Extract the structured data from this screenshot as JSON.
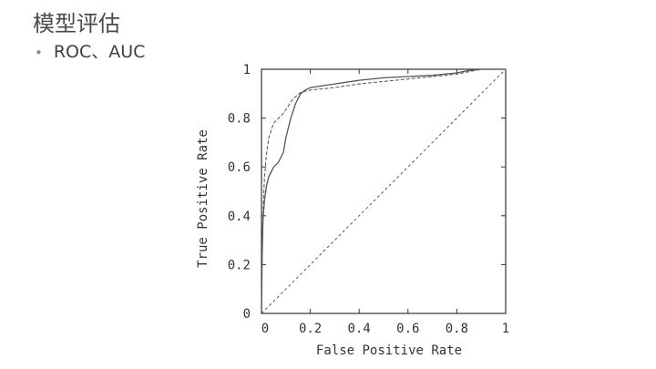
{
  "slide": {
    "title": "模型评估",
    "bullet": "ROC、AUC"
  },
  "chart_data": {
    "type": "line",
    "title": "",
    "xlabel": "False Positive Rate",
    "ylabel": "True Positive Rate",
    "xlim": [
      0,
      1
    ],
    "ylim": [
      0,
      1
    ],
    "x_tick_labels": [
      "0",
      "0.2",
      "0.4",
      "0.6",
      "0.8",
      "1"
    ],
    "y_tick_labels": [
      "0",
      "0.2",
      "0.4",
      "0.6",
      "0.8",
      "1"
    ],
    "grid": false,
    "legend": "none",
    "colors": {
      "line": "#555555",
      "frame": "#333333"
    },
    "series": [
      {
        "style": "solid",
        "points": [
          [
            0,
            0
          ],
          [
            0.003,
            0.25
          ],
          [
            0.006,
            0.38
          ],
          [
            0.012,
            0.46
          ],
          [
            0.02,
            0.52
          ],
          [
            0.03,
            0.56
          ],
          [
            0.05,
            0.6
          ],
          [
            0.07,
            0.62
          ],
          [
            0.09,
            0.66
          ],
          [
            0.1,
            0.72
          ],
          [
            0.12,
            0.8
          ],
          [
            0.14,
            0.86
          ],
          [
            0.16,
            0.9
          ],
          [
            0.18,
            0.915
          ],
          [
            0.2,
            0.925
          ],
          [
            0.3,
            0.94
          ],
          [
            0.4,
            0.955
          ],
          [
            0.5,
            0.965
          ],
          [
            0.6,
            0.97
          ],
          [
            0.7,
            0.975
          ],
          [
            0.8,
            0.985
          ],
          [
            0.85,
            0.995
          ],
          [
            0.9,
            1
          ],
          [
            1,
            1
          ]
        ]
      },
      {
        "style": "dashed",
        "points": [
          [
            0,
            0
          ],
          [
            0.003,
            0.3
          ],
          [
            0.008,
            0.45
          ],
          [
            0.012,
            0.55
          ],
          [
            0.02,
            0.65
          ],
          [
            0.03,
            0.72
          ],
          [
            0.05,
            0.78
          ],
          [
            0.07,
            0.8
          ],
          [
            0.09,
            0.82
          ],
          [
            0.11,
            0.85
          ],
          [
            0.13,
            0.88
          ],
          [
            0.16,
            0.905
          ],
          [
            0.2,
            0.915
          ],
          [
            0.3,
            0.925
          ],
          [
            0.4,
            0.94
          ],
          [
            0.5,
            0.95
          ],
          [
            0.6,
            0.96
          ],
          [
            0.7,
            0.97
          ],
          [
            0.8,
            0.98
          ],
          [
            0.85,
            0.99
          ],
          [
            0.9,
            1
          ],
          [
            1,
            1
          ]
        ]
      },
      {
        "style": "dotted",
        "points": [
          [
            0,
            0
          ],
          [
            1,
            1
          ]
        ]
      }
    ]
  }
}
